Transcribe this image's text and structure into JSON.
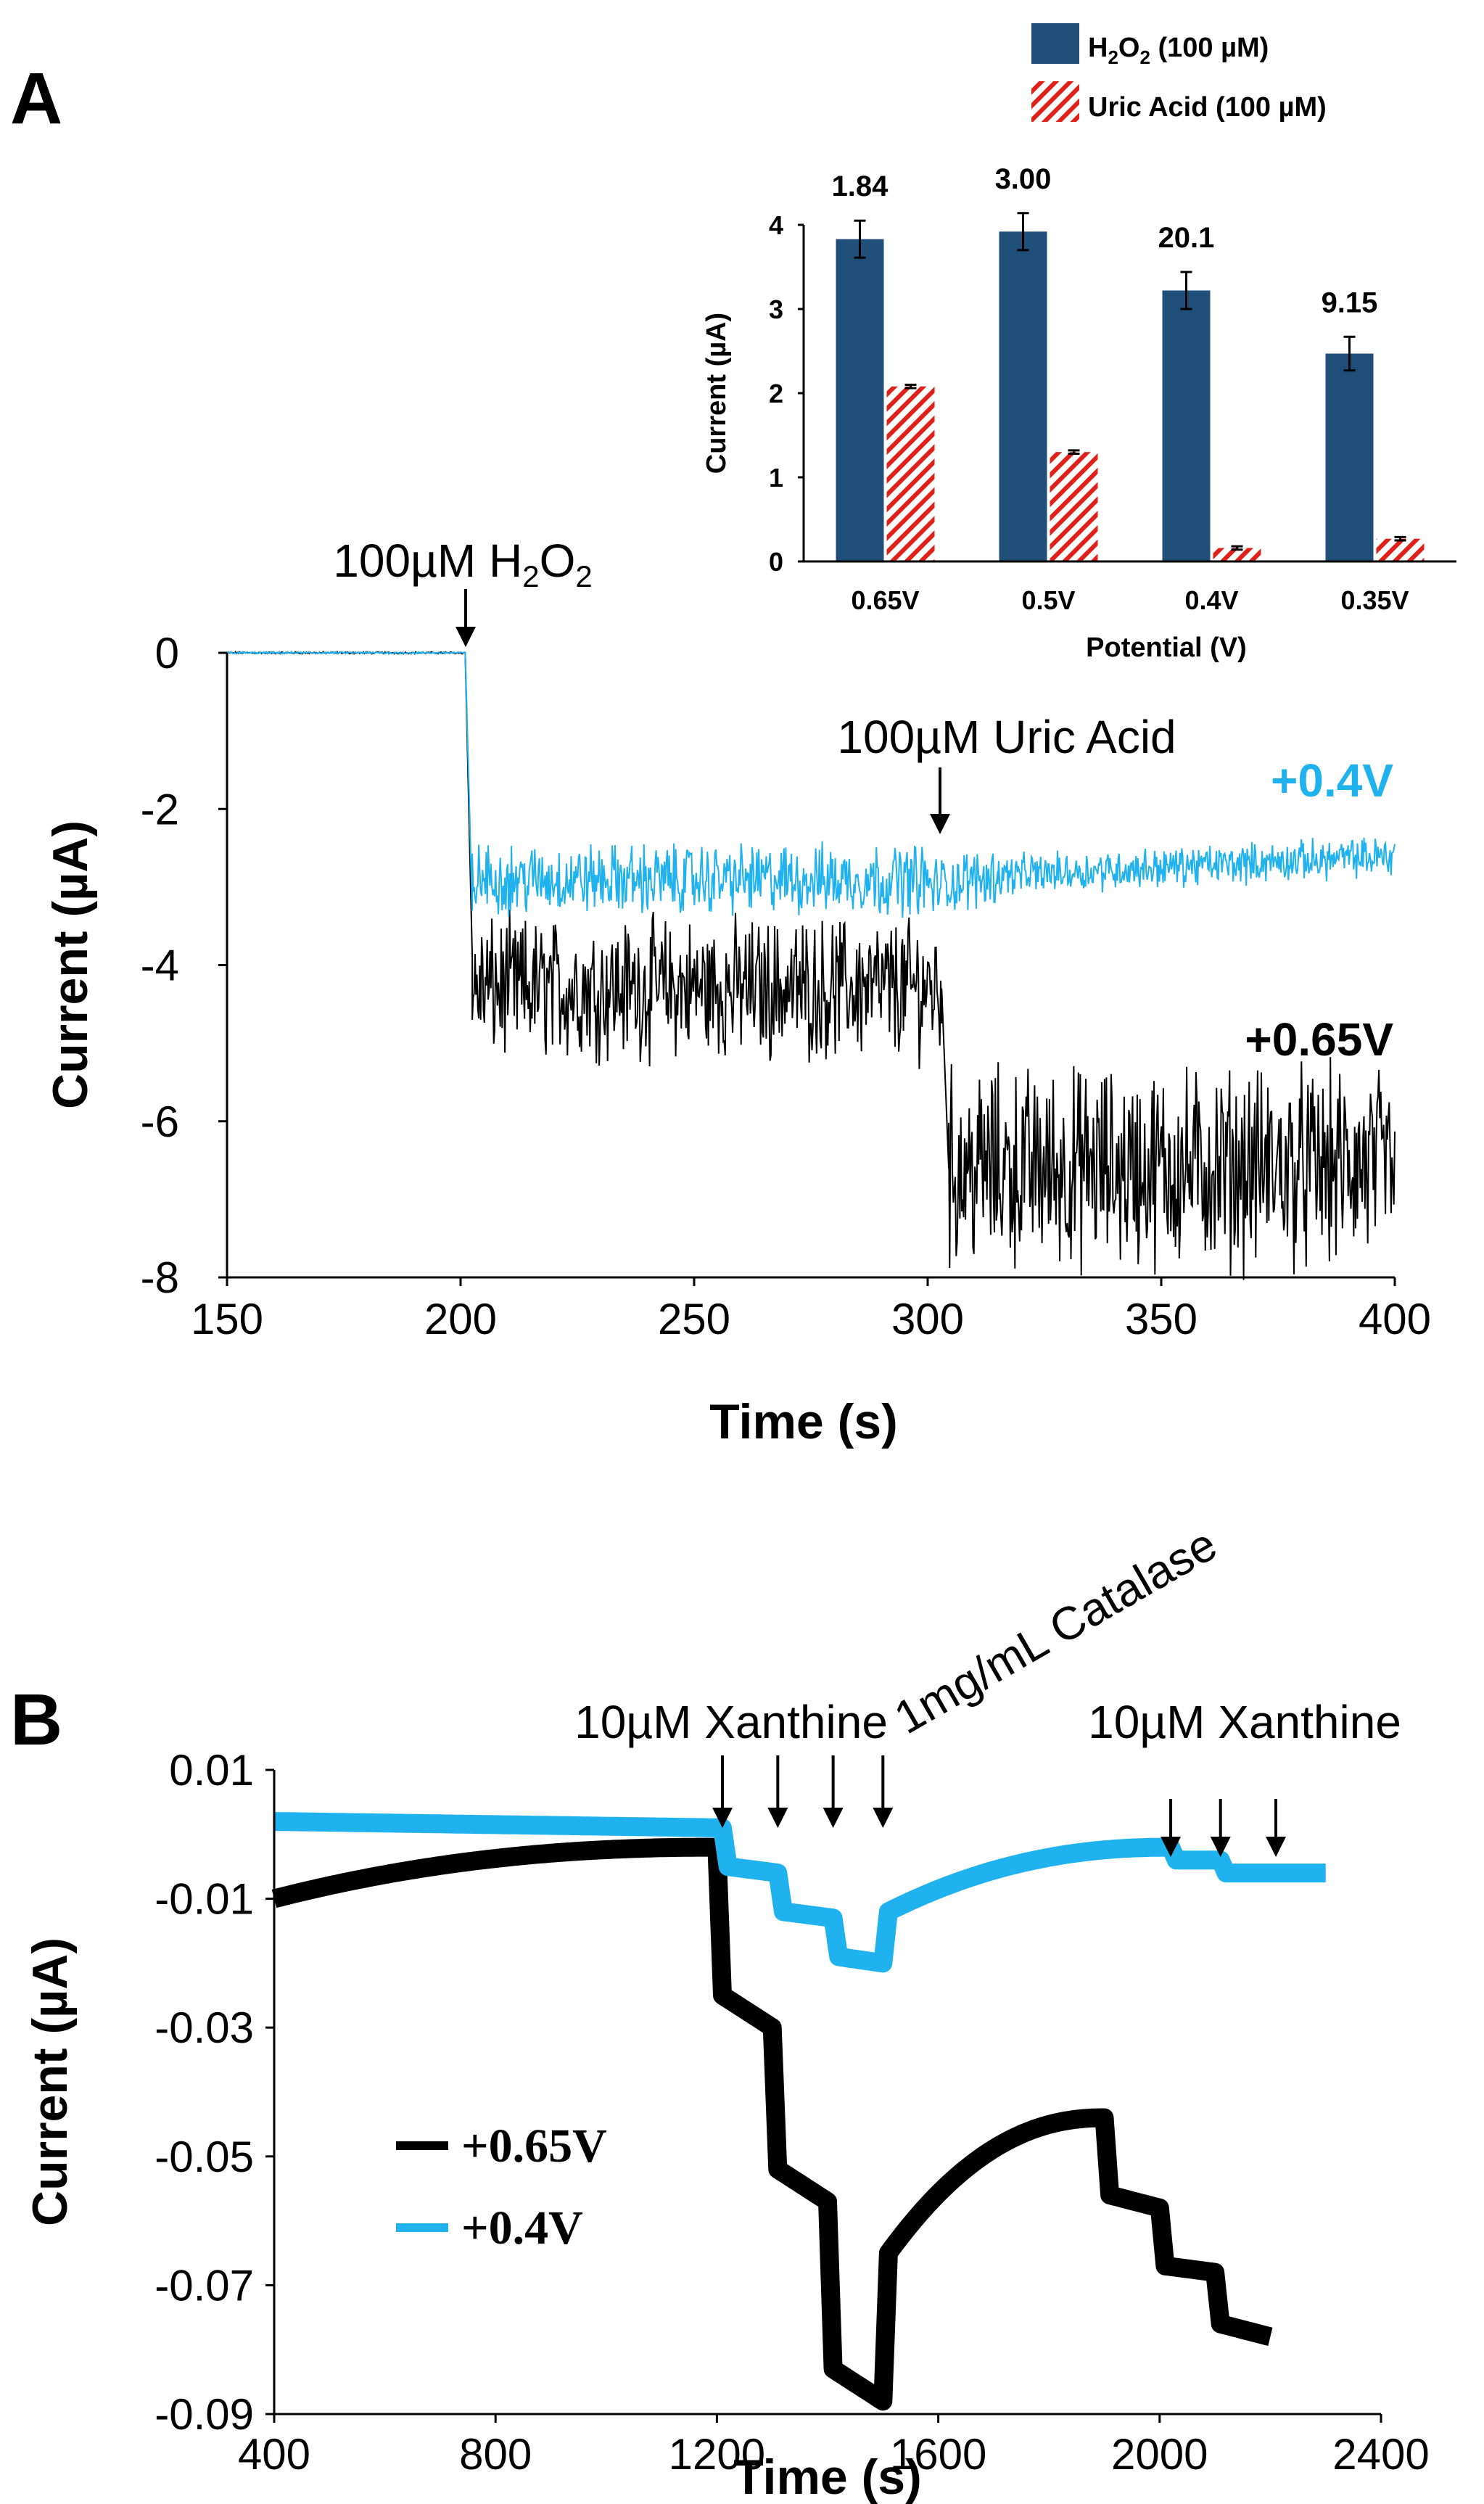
{
  "chart_data": [
    {
      "id": "panelA",
      "panel_label": "A",
      "type": "line",
      "xlabel": "Time (s)",
      "ylabel": "Current (µA)",
      "xlim": [
        150,
        400
      ],
      "ylim": [
        -8,
        0
      ],
      "xticks": [
        150,
        200,
        250,
        300,
        350,
        400
      ],
      "yticks": [
        0,
        -2,
        -4,
        -6,
        -8
      ],
      "grid": false,
      "annotations": [
        {
          "text": "100µM H",
          "sub": "2",
          "text2": "O",
          "sub2": "2",
          "x": 201,
          "y": 0
        },
        {
          "text": "100µM Uric Acid",
          "x": 302,
          "y": -2.4
        }
      ],
      "series": [
        {
          "name": "+0.4V",
          "color": "#1fb2ee",
          "label": "+0.4V",
          "segments": [
            {
              "x0": 150,
              "x1": 201,
              "y": 0.0,
              "noise": 0.01
            },
            {
              "x0": 201,
              "x1": 202.5,
              "y0": 0.0,
              "y1": -3.3
            },
            {
              "x0": 202.5,
              "x1": 300,
              "y": -2.9,
              "noise": 0.35
            },
            {
              "x0": 300,
              "x1": 315,
              "y0": -3.0,
              "y1": -2.85,
              "noise": 0.3
            },
            {
              "x0": 315,
              "x1": 400,
              "y0": -2.85,
              "y1": -2.6,
              "noise": 0.2
            }
          ]
        },
        {
          "name": "+0.65V",
          "color": "#000000",
          "label": "+0.65V",
          "segments": [
            {
              "x0": 150,
              "x1": 201,
              "y": 0.0,
              "noise": 0.01
            },
            {
              "x0": 201,
              "x1": 202.5,
              "y0": 0.0,
              "y1": -3.9
            },
            {
              "x0": 202.5,
              "x1": 303,
              "y": -4.3,
              "noise": 0.7
            },
            {
              "x0": 303,
              "x1": 304.5,
              "y0": -4.3,
              "y1": -6.6
            },
            {
              "x0": 304.5,
              "x1": 400,
              "y": -6.6,
              "noise": 1.0
            }
          ]
        }
      ]
    },
    {
      "id": "inset",
      "type": "bar",
      "xlabel": "Potential (V)",
      "ylabel": "Current (µA)",
      "ylim": [
        0,
        4
      ],
      "yticks": [
        0,
        1,
        2,
        3,
        4
      ],
      "categories": [
        "0.65V",
        "0.5V",
        "0.4V",
        "0.35V"
      ],
      "series": [
        {
          "name": "H2O2 (100 µM)",
          "color": "#1f4e79",
          "values": [
            3.83,
            3.92,
            3.22,
            2.47
          ],
          "errors": [
            0.22,
            0.22,
            0.22,
            0.2
          ]
        },
        {
          "name": "Uric Acid (100 µM)",
          "color": "#e0211a",
          "pattern": "hatch",
          "values": [
            2.08,
            1.3,
            0.16,
            0.27
          ],
          "errors": [
            0.02,
            0.02,
            0.02,
            0.02
          ]
        }
      ],
      "bar_labels": [
        "1.84",
        "3.00",
        "20.1",
        "9.15"
      ],
      "legend": [
        {
          "text": "H",
          "sub": "2",
          "text2": "O",
          "sub2": "2",
          "text3": " (100 µM)"
        },
        {
          "text": "Uric Acid (100 µM)"
        }
      ]
    },
    {
      "id": "panelB",
      "panel_label": "B",
      "type": "line",
      "xlabel": "Time (s)",
      "ylabel": "Current (µA)",
      "xlim": [
        400,
        2400
      ],
      "ylim": [
        -0.09,
        0.01
      ],
      "xticks": [
        400,
        800,
        1200,
        1600,
        2000,
        2400
      ],
      "yticks": [
        0.01,
        -0.01,
        -0.03,
        -0.05,
        -0.07,
        -0.09
      ],
      "ytick_labels": [
        "0.01",
        "-0.01",
        "-0.03",
        "-0.05",
        "-0.07",
        "-0.09"
      ],
      "grid": false,
      "annotations": [
        {
          "text": "10µM Xanthine",
          "x": 1210
        },
        {
          "text": "1mg/mL Catalase",
          "x": 1500,
          "rotation": -30
        },
        {
          "text": "10µM Xanthine",
          "x": 2100
        }
      ],
      "arrows_x": [
        1210,
        1310,
        1410,
        1500,
        2020,
        2110,
        2210
      ],
      "series": [
        {
          "name": "+0.65V",
          "color": "#000000",
          "segments": [
            {
              "x0": 400,
              "x1": 1200,
              "y0": -0.01,
              "y1": -0.002,
              "curve": "sat"
            },
            {
              "x0": 1200,
              "x1": 1210,
              "y0": -0.002,
              "y1": -0.025
            },
            {
              "x0": 1210,
              "x1": 1300,
              "y0": -0.025,
              "y1": -0.03
            },
            {
              "x0": 1300,
              "x1": 1310,
              "y0": -0.03,
              "y1": -0.052
            },
            {
              "x0": 1310,
              "x1": 1400,
              "y0": -0.052,
              "y1": -0.057
            },
            {
              "x0": 1400,
              "x1": 1410,
              "y0": -0.057,
              "y1": -0.083
            },
            {
              "x0": 1410,
              "x1": 1500,
              "y0": -0.083,
              "y1": -0.088
            },
            {
              "x0": 1500,
              "x1": 1510,
              "y0": -0.088,
              "y1": -0.065
            },
            {
              "x0": 1510,
              "x1": 1900,
              "y0": -0.065,
              "y1": -0.044,
              "curve": "sat"
            },
            {
              "x0": 1900,
              "x1": 1910,
              "y0": -0.044,
              "y1": -0.056
            },
            {
              "x0": 1910,
              "x1": 2000,
              "y0": -0.056,
              "y1": -0.058
            },
            {
              "x0": 2000,
              "x1": 2010,
              "y0": -0.058,
              "y1": -0.067
            },
            {
              "x0": 2010,
              "x1": 2100,
              "y0": -0.067,
              "y1": -0.068
            },
            {
              "x0": 2100,
              "x1": 2110,
              "y0": -0.068,
              "y1": -0.076
            },
            {
              "x0": 2110,
              "x1": 2200,
              "y0": -0.076,
              "y1": -0.078
            }
          ]
        },
        {
          "name": "+0.4V",
          "color": "#1fb2ee",
          "segments": [
            {
              "x0": 400,
              "x1": 1210,
              "y0": 0.002,
              "y1": 0.001
            },
            {
              "x0": 1210,
              "x1": 1220,
              "y0": 0.001,
              "y1": -0.005
            },
            {
              "x0": 1220,
              "x1": 1310,
              "y0": -0.005,
              "y1": -0.006
            },
            {
              "x0": 1310,
              "x1": 1320,
              "y0": -0.006,
              "y1": -0.012
            },
            {
              "x0": 1320,
              "x1": 1410,
              "y0": -0.012,
              "y1": -0.013
            },
            {
              "x0": 1410,
              "x1": 1420,
              "y0": -0.013,
              "y1": -0.019
            },
            {
              "x0": 1420,
              "x1": 1500,
              "y0": -0.019,
              "y1": -0.02
            },
            {
              "x0": 1500,
              "x1": 1510,
              "y0": -0.02,
              "y1": -0.012
            },
            {
              "x0": 1510,
              "x1": 2020,
              "y0": -0.012,
              "y1": -0.002,
              "curve": "sat"
            },
            {
              "x0": 2020,
              "x1": 2030,
              "y0": -0.002,
              "y1": -0.004
            },
            {
              "x0": 2030,
              "x1": 2110,
              "y0": -0.004,
              "y1": -0.004
            },
            {
              "x0": 2110,
              "x1": 2120,
              "y0": -0.004,
              "y1": -0.006
            },
            {
              "x0": 2120,
              "x1": 2300,
              "y0": -0.006,
              "y1": -0.006
            }
          ]
        }
      ],
      "legend": [
        {
          "name": "+0.65V",
          "color": "#000000"
        },
        {
          "name": "+0.4V",
          "color": "#1fb2ee"
        }
      ]
    }
  ]
}
